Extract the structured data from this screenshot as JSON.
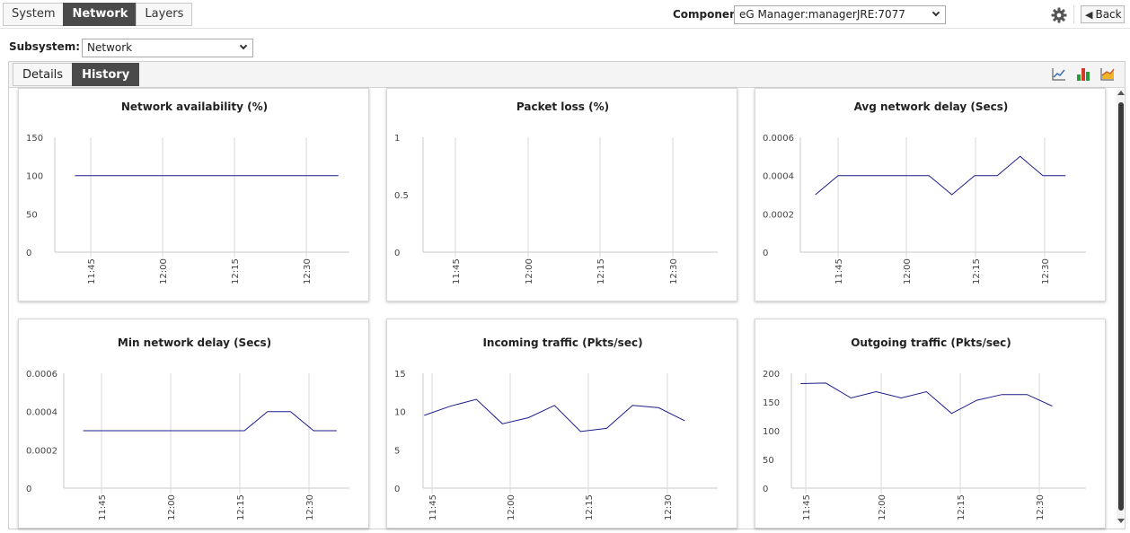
{
  "top_tabs": [
    {
      "label": "System",
      "active": false
    },
    {
      "label": "Network",
      "active": true
    },
    {
      "label": "Layers",
      "active": false
    }
  ],
  "component": {
    "label": "Component",
    "value": "eG Manager:managerJRE:7077"
  },
  "toolbar": {
    "settings_icon": "gear-icon",
    "back_label": "Back",
    "back_icon": "back-arrow-icon"
  },
  "subsystem": {
    "label": "Subsystem:",
    "value": "Network"
  },
  "panel_tabs": [
    {
      "label": "Details",
      "active": false
    },
    {
      "label": "History",
      "active": true
    }
  ],
  "view_icons": [
    "line-chart-icon",
    "bar-chart-icon",
    "area-chart-icon"
  ],
  "colors": {
    "line": "#1c1c8a",
    "grid": "#d9d9d9",
    "active_tab": "#4a4a4a"
  },
  "chart_data": [
    {
      "type": "line",
      "title": "Network availability (%)",
      "x_ticks": [
        "11:45",
        "12:00",
        "12:15",
        "12:30"
      ],
      "y_ticks": [
        "150",
        "100",
        "50",
        "0"
      ],
      "ylim": [
        0,
        150
      ],
      "x_minutes": [
        0,
        5,
        10,
        15,
        20,
        25,
        30,
        35,
        40,
        45,
        50,
        55
      ],
      "series": [
        {
          "values": [
            100,
            100,
            100,
            100,
            100,
            100,
            100,
            100,
            100,
            100,
            100,
            100
          ]
        }
      ]
    },
    {
      "type": "line",
      "title": "Packet loss (%)",
      "x_ticks": [
        "11:45",
        "12:00",
        "12:15",
        "12:30"
      ],
      "y_ticks": [
        "1",
        "0.5",
        "0"
      ],
      "ylim": [
        0,
        1
      ],
      "x_minutes": [],
      "series": []
    },
    {
      "type": "line",
      "title": "Avg network delay (Secs)",
      "x_ticks": [
        "11:45",
        "12:00",
        "12:15",
        "12:30"
      ],
      "y_ticks": [
        "0.0006",
        "0.0004",
        "0.0002",
        "0"
      ],
      "ylim": [
        0,
        0.0006
      ],
      "x_minutes": [
        0,
        5,
        10,
        15,
        20,
        25,
        30,
        35,
        40,
        45,
        50,
        55
      ],
      "series": [
        {
          "values": [
            0.0003,
            0.0004,
            0.0004,
            0.0004,
            0.0004,
            0.0004,
            0.0003,
            0.0004,
            0.0004,
            0.0005,
            0.0004,
            0.0004
          ]
        }
      ]
    },
    {
      "type": "line",
      "title": "Min network delay (Secs)",
      "x_ticks": [
        "11:45",
        "12:00",
        "12:15",
        "12:30"
      ],
      "y_ticks": [
        "0.0006",
        "0.0004",
        "0.0002",
        "0"
      ],
      "ylim": [
        0,
        0.0006
      ],
      "x_minutes": [
        0,
        5,
        10,
        15,
        20,
        25,
        30,
        35,
        40,
        45,
        50,
        55
      ],
      "series": [
        {
          "values": [
            0.0003,
            0.0003,
            0.0003,
            0.0003,
            0.0003,
            0.0003,
            0.0003,
            0.0003,
            0.0004,
            0.0004,
            0.0003,
            0.0003
          ]
        }
      ]
    },
    {
      "type": "line",
      "title": "Incoming traffic (Pkts/sec)",
      "x_ticks": [
        "11:45",
        "12:00",
        "12:15",
        "12:30"
      ],
      "y_ticks": [
        "15",
        "10",
        "5",
        "0"
      ],
      "ylim": [
        0,
        15
      ],
      "x_minutes": [
        0,
        5,
        10,
        15,
        20,
        25,
        30,
        35,
        40,
        45,
        50,
        55
      ],
      "series": [
        {
          "values": [
            9.5,
            10.7,
            11.6,
            8.4,
            9.2,
            10.8,
            7.4,
            7.8,
            10.8,
            10.5,
            8.8,
            null
          ]
        }
      ]
    },
    {
      "type": "line",
      "title": "Outgoing traffic (Pkts/sec)",
      "x_ticks": [
        "11:45",
        "12:00",
        "12:15",
        "12:30"
      ],
      "y_ticks": [
        "200",
        "150",
        "100",
        "50",
        "0"
      ],
      "ylim": [
        0,
        200
      ],
      "x_minutes": [
        0,
        5,
        10,
        15,
        20,
        25,
        30,
        35,
        40,
        45,
        50,
        55
      ],
      "series": [
        {
          "values": [
            182,
            183,
            157,
            168,
            157,
            168,
            130,
            153,
            163,
            163,
            143,
            null
          ]
        }
      ]
    }
  ]
}
